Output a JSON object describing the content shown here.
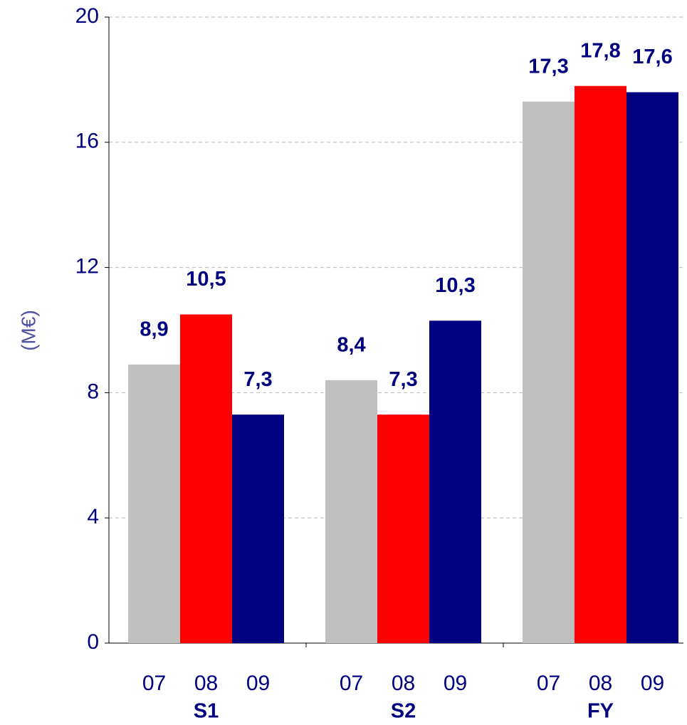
{
  "chart_data": {
    "type": "bar",
    "y_label": "(M€)",
    "categories": [
      "S1",
      "S2",
      "FY"
    ],
    "series": [
      {
        "name": "07",
        "color": "#c0c0c0",
        "values": [
          8.9,
          8.4,
          17.3
        ],
        "value_labels": [
          "8,9",
          "8,4",
          "17,3"
        ]
      },
      {
        "name": "08",
        "color": "#ff0000",
        "values": [
          10.5,
          7.3,
          17.8
        ],
        "value_labels": [
          "10,5",
          "7,3",
          "17,8"
        ]
      },
      {
        "name": "09",
        "color": "#000080",
        "values": [
          7.3,
          10.3,
          17.6
        ],
        "value_labels": [
          "7,3",
          "10,3",
          "17,6"
        ]
      }
    ],
    "ylim": [
      0,
      20
    ],
    "yticks": [
      0,
      4,
      8,
      12,
      16,
      20
    ],
    "grid": true
  }
}
